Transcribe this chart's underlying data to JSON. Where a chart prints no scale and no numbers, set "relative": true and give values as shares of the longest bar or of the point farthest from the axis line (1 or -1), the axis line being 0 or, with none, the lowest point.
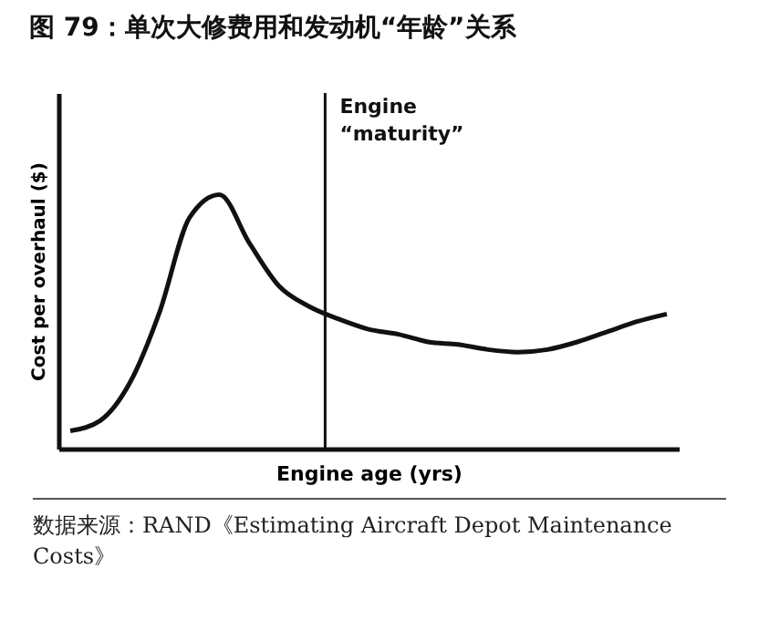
{
  "chart_data": {
    "type": "line",
    "title": "图 79：单次大修费用和发动机“年龄”关系",
    "xlabel": "Engine age (yrs)",
    "ylabel": "Cost per overhaul ($)",
    "relative": true,
    "categories": [
      null,
      null,
      null,
      null,
      null,
      null,
      null,
      null,
      null,
      null,
      null,
      null,
      null,
      null,
      null,
      null,
      null,
      null,
      null,
      null,
      null
    ],
    "series": [
      {
        "color": "#111111",
        "values": [
          0.07,
          0.11,
          0.26,
          0.54,
          0.91,
          1.0,
          0.81,
          0.64,
          0.56,
          0.51,
          0.47,
          0.45,
          0.42,
          0.41,
          0.39,
          0.38,
          0.39,
          0.42,
          0.46,
          0.5,
          0.53
        ]
      }
    ],
    "annotations": [
      "Engine “maturity”",
      "数据来源：RAND《Estimating Aircraft Depot Maintenance Costs》"
    ]
  }
}
